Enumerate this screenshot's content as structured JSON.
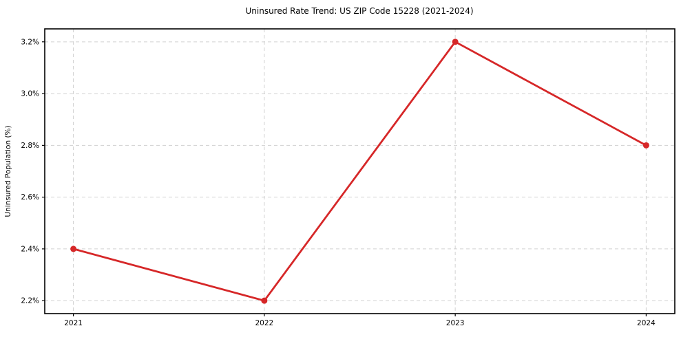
{
  "chart_data": {
    "type": "line",
    "title": "Uninsured Rate Trend: US ZIP Code 15228 (2021-2024)",
    "xlabel": "",
    "ylabel": "Uninsured Population (%)",
    "x": [
      2021,
      2022,
      2023,
      2024
    ],
    "x_tick_labels": [
      "2021",
      "2022",
      "2023",
      "2024"
    ],
    "series": [
      {
        "name": "Uninsured Rate",
        "values": [
          2.4,
          2.2,
          3.2,
          2.8
        ]
      }
    ],
    "y_ticks": [
      2.2,
      2.4,
      2.6,
      2.8,
      3.0,
      3.2
    ],
    "y_tick_labels": [
      "2.2%",
      "2.4%",
      "2.6%",
      "2.8%",
      "3.0%",
      "3.2%"
    ],
    "xlim": [
      2020.85,
      2024.15
    ],
    "ylim": [
      2.15,
      3.25
    ],
    "grid": true,
    "legend": "none",
    "line_color": "#d62728",
    "marker": "circle",
    "background_color": "#ffffff"
  }
}
